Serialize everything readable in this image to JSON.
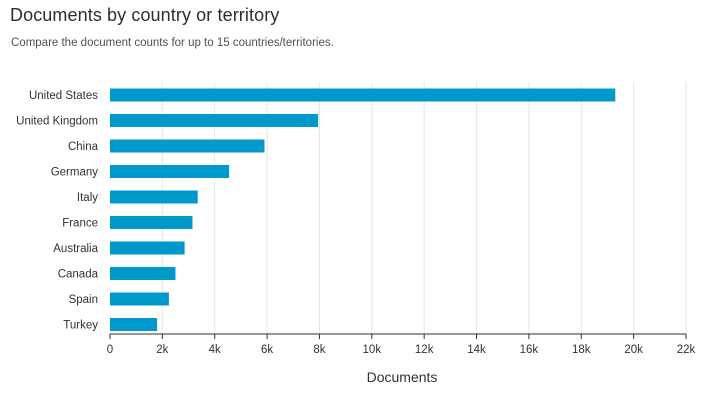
{
  "header": {
    "title": "Documents by country or territory",
    "subtitle": "Compare the document counts for up to 15 countries/territories."
  },
  "colors": {
    "bar": "#0099cc",
    "grid": "#e6e6e6",
    "axis": "#323232"
  },
  "chart_data": {
    "type": "bar",
    "orientation": "horizontal",
    "categories": [
      "United States",
      "United Kingdom",
      "China",
      "Germany",
      "Italy",
      "France",
      "Australia",
      "Canada",
      "Spain",
      "Turkey"
    ],
    "values": [
      19300,
      7950,
      5900,
      4550,
      3350,
      3150,
      2850,
      2500,
      2250,
      1800
    ],
    "xlabel": "Documents",
    "ylabel": "",
    "xlim": [
      0,
      22000
    ],
    "xticks": [
      0,
      2000,
      4000,
      6000,
      8000,
      10000,
      12000,
      14000,
      16000,
      18000,
      20000,
      22000
    ],
    "xtick_labels": [
      "0",
      "2k",
      "4k",
      "6k",
      "8k",
      "10k",
      "12k",
      "14k",
      "16k",
      "18k",
      "20k",
      "22k"
    ],
    "grid": "vertical",
    "legend": "none"
  }
}
